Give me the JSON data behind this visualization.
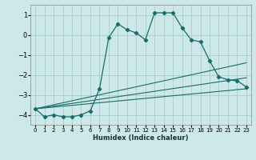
{
  "title": "",
  "xlabel": "Humidex (Indice chaleur)",
  "ylabel": "",
  "bg_color": "#cce8e8",
  "grid_color": "#aacccc",
  "line_color": "#1a6b6b",
  "xlim": [
    -0.5,
    23.5
  ],
  "ylim": [
    -4.5,
    1.5
  ],
  "yticks": [
    -4,
    -3,
    -2,
    -1,
    0,
    1
  ],
  "xticks": [
    0,
    1,
    2,
    3,
    4,
    5,
    6,
    7,
    8,
    9,
    10,
    11,
    12,
    13,
    14,
    15,
    16,
    17,
    18,
    19,
    20,
    21,
    22,
    23
  ],
  "series1_x": [
    0,
    1,
    2,
    3,
    4,
    5,
    6,
    7,
    8,
    9,
    10,
    11,
    12,
    13,
    14,
    15,
    16,
    17,
    18,
    19,
    20,
    21,
    22,
    23
  ],
  "series1_y": [
    -3.7,
    -4.1,
    -4.0,
    -4.1,
    -4.1,
    -4.0,
    -3.8,
    -2.7,
    -0.15,
    0.55,
    0.25,
    0.1,
    -0.25,
    1.1,
    1.1,
    1.1,
    0.35,
    -0.25,
    -0.35,
    -1.3,
    -2.1,
    -2.25,
    -2.3,
    -2.6
  ],
  "series2_x": [
    0,
    23
  ],
  "series2_y": [
    -3.7,
    -1.4
  ],
  "series3_x": [
    0,
    23
  ],
  "series3_y": [
    -3.7,
    -2.15
  ],
  "series4_x": [
    0,
    23
  ],
  "series4_y": [
    -3.7,
    -2.7
  ]
}
